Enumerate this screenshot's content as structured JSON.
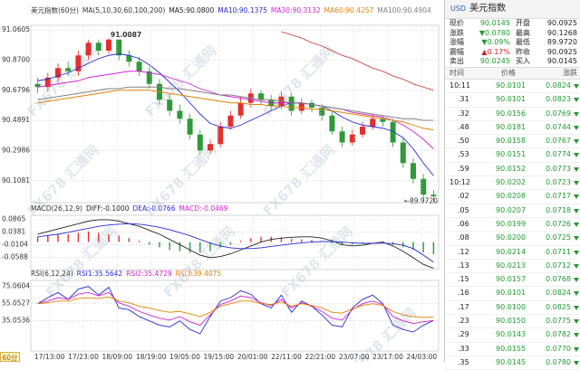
{
  "chart_data": [
    {
      "type": "candlestick",
      "title": "美元指数(60分)",
      "legend": [
        "MA(5,10,30,60,100,200)",
        "MA5:90.0800",
        "MA10:90.1375",
        "MA30:90.3132",
        "MA60:90.4257",
        "MA100:90.4904"
      ],
      "legend_colors": [
        "#333333",
        "#222222",
        "#2a2ad0",
        "#d020d0",
        "#e08000",
        "#808080"
      ],
      "open": [
        90.72,
        90.7,
        90.76,
        90.82,
        90.8,
        90.9,
        90.98,
        90.93,
        91.0,
        90.9,
        90.86,
        90.8,
        90.72,
        90.62,
        90.55,
        90.5,
        90.4,
        90.3,
        90.34,
        90.45,
        90.52,
        90.6,
        90.66,
        90.62,
        90.58,
        90.64,
        90.55,
        90.6,
        90.57,
        90.52,
        90.42,
        90.35,
        90.4,
        90.45,
        90.5,
        90.48,
        90.35,
        90.22,
        90.12,
        90.02
      ],
      "high": [
        90.76,
        90.79,
        90.85,
        90.86,
        90.93,
        91.0,
        91.0,
        91.0087,
        91.0,
        90.93,
        90.89,
        90.83,
        90.75,
        90.66,
        90.59,
        90.53,
        90.43,
        90.37,
        90.48,
        90.55,
        90.64,
        90.69,
        90.68,
        90.65,
        90.67,
        90.66,
        90.63,
        90.62,
        90.59,
        90.55,
        90.45,
        90.43,
        90.48,
        90.53,
        90.52,
        90.5,
        90.38,
        90.25,
        90.15,
        90.05
      ],
      "low": [
        90.66,
        90.67,
        90.73,
        90.77,
        90.77,
        90.87,
        90.9,
        90.91,
        90.87,
        90.83,
        90.77,
        90.69,
        90.59,
        90.52,
        90.47,
        90.37,
        90.27,
        90.28,
        90.32,
        90.43,
        90.5,
        90.57,
        90.59,
        90.55,
        90.56,
        90.52,
        90.53,
        90.54,
        90.49,
        90.4,
        90.32,
        90.33,
        90.38,
        90.43,
        90.45,
        90.32,
        90.19,
        90.09,
        89.99,
        89.972
      ],
      "close": [
        90.7,
        90.76,
        90.82,
        90.8,
        90.9,
        90.98,
        90.93,
        91.0,
        90.9,
        90.86,
        90.8,
        90.72,
        90.62,
        90.55,
        90.5,
        90.4,
        90.3,
        90.34,
        90.45,
        90.52,
        90.6,
        90.66,
        90.62,
        90.58,
        90.64,
        90.55,
        90.6,
        90.57,
        90.52,
        90.42,
        90.35,
        90.4,
        90.45,
        90.5,
        90.48,
        90.35,
        90.22,
        90.12,
        90.02,
        90.01
      ],
      "up_color": "#e03030",
      "down_color": "#2e9a3a",
      "series": [
        {
          "color": "#2a2ad0",
          "values": [
            90.74,
            90.75,
            90.77,
            90.79,
            90.82,
            90.85,
            90.88,
            90.9,
            90.91,
            90.9,
            90.88,
            90.84,
            90.79,
            90.73,
            90.67,
            90.6,
            90.53,
            90.47,
            90.45,
            90.44,
            90.46,
            90.49,
            90.52,
            90.55,
            90.58,
            90.6,
            90.6,
            90.59,
            90.58,
            90.55,
            90.51,
            90.48,
            90.46,
            90.45,
            90.44,
            90.42,
            90.38,
            90.31,
            90.22,
            90.14
          ]
        },
        {
          "color": "#d020d0",
          "values": [
            90.7,
            90.71,
            90.72,
            90.73,
            90.74,
            90.76,
            90.77,
            90.78,
            90.79,
            90.8,
            90.8,
            90.79,
            90.78,
            90.76,
            90.74,
            90.72,
            90.69,
            90.67,
            90.65,
            90.64,
            90.63,
            90.62,
            90.61,
            90.6,
            90.6,
            90.6,
            90.6,
            90.59,
            90.58,
            90.57,
            90.56,
            90.54,
            90.53,
            90.52,
            90.51,
            90.49,
            90.46,
            90.42,
            90.37,
            90.31
          ]
        },
        {
          "color": "#e08000",
          "values": [
            90.6,
            90.61,
            90.62,
            90.63,
            90.64,
            90.65,
            90.66,
            90.67,
            90.68,
            90.68,
            90.68,
            90.68,
            90.67,
            90.66,
            90.65,
            90.64,
            90.63,
            90.62,
            90.61,
            90.6,
            90.6,
            90.59,
            90.59,
            90.58,
            90.58,
            90.57,
            90.57,
            90.56,
            90.56,
            90.55,
            90.54,
            90.53,
            90.52,
            90.51,
            90.5,
            90.49,
            90.48,
            90.46,
            90.44,
            90.43
          ]
        },
        {
          "color": "#808080",
          "values": [
            90.62,
            90.63,
            90.64,
            90.65,
            90.66,
            90.67,
            90.68,
            90.69,
            90.69,
            90.7,
            90.7,
            90.7,
            90.7,
            90.69,
            90.69,
            90.68,
            90.67,
            90.66,
            90.65,
            90.65,
            90.64,
            90.63,
            90.62,
            90.62,
            90.61,
            90.6,
            90.6,
            90.59,
            90.58,
            90.57,
            90.56,
            90.55,
            90.54,
            90.53,
            90.52,
            90.51,
            90.5,
            90.5,
            90.49,
            90.49
          ]
        },
        {
          "color": "#c83030",
          "values": [
            null,
            null,
            null,
            null,
            null,
            null,
            null,
            null,
            null,
            null,
            null,
            null,
            null,
            null,
            null,
            null,
            null,
            null,
            null,
            null,
            null,
            null,
            null,
            null,
            91.05,
            91.03,
            91.01,
            90.98,
            90.96,
            90.93,
            90.9,
            90.88,
            90.85,
            90.82,
            90.8,
            90.77,
            90.75,
            90.72,
            90.7,
            90.68
          ]
        }
      ],
      "ylim": [
        89.97,
        91.09
      ],
      "yticks": [
        91.0605,
        {
          "value": 90.87,
          "label": "90.8700"
        },
        90.6796,
        90.4891,
        90.2986,
        90.1081
      ],
      "annotations": [
        "91.0087",
        "←89.9720"
      ],
      "x_labels": [
        "17/13:00",
        "17/23:00",
        "18/09:00",
        "18/19:00",
        "19/05:00",
        "19/15:00",
        "20/01:00",
        "22/11:00",
        "22/21:00",
        "23/07:00",
        "23/17:00",
        "24/03:00"
      ],
      "grid": true
    },
    {
      "type": "macd",
      "title": "MACD(26,12,9)",
      "legend": [
        "DIFF:-0.1000",
        "DEA:-0.0766",
        "MACD:-0.0469"
      ],
      "legend_colors": [
        "#222222",
        "#2a2ad0",
        "#d020d0"
      ],
      "values": [
        0.02,
        0.025,
        0.03,
        0.03,
        0.035,
        0.04,
        0.035,
        0.03,
        0.025,
        0.015,
        0.005,
        -0.01,
        -0.02,
        -0.03,
        -0.035,
        -0.04,
        -0.04,
        -0.035,
        -0.02,
        -0.01,
        0.005,
        0.015,
        0.02,
        0.02,
        0.018,
        0.012,
        0.01,
        0.008,
        0.002,
        -0.005,
        -0.012,
        -0.01,
        -0.005,
        0.001,
        0.002,
        -0.01,
        -0.02,
        -0.03,
        -0.04,
        -0.0469
      ],
      "up_color": "#e03030",
      "down_color": "#2e9a3a",
      "series": [
        {
          "color": "#222222",
          "values": [
            0.03,
            0.04,
            0.05,
            0.06,
            0.07,
            0.08,
            0.085,
            0.085,
            0.08,
            0.07,
            0.06,
            0.045,
            0.03,
            0.01,
            -0.01,
            -0.03,
            -0.05,
            -0.06,
            -0.055,
            -0.045,
            -0.03,
            -0.015,
            0.0,
            0.01,
            0.015,
            0.018,
            0.02,
            0.02,
            0.015,
            0.005,
            -0.01,
            -0.015,
            -0.012,
            -0.005,
            0.0,
            -0.015,
            -0.035,
            -0.06,
            -0.085,
            -0.1
          ]
        },
        {
          "color": "#2a2ad0",
          "values": [
            0.02,
            0.025,
            0.03,
            0.037,
            0.045,
            0.052,
            0.06,
            0.065,
            0.068,
            0.07,
            0.068,
            0.063,
            0.056,
            0.047,
            0.036,
            0.024,
            0.01,
            -0.004,
            -0.015,
            -0.022,
            -0.025,
            -0.025,
            -0.022,
            -0.017,
            -0.012,
            -0.007,
            -0.003,
            0.0,
            0.002,
            0.002,
            0.0,
            -0.003,
            -0.005,
            -0.005,
            -0.004,
            -0.006,
            -0.012,
            -0.025,
            -0.05,
            -0.0766
          ]
        }
      ],
      "ylim": [
        -0.105,
        0.102
      ],
      "yticks": [
        0.0865,
        0.0381,
        -0.0104,
        -0.0588
      ],
      "grid": true
    },
    {
      "type": "line",
      "title": "RSI(6,12,24)",
      "legend": [
        "RSI1:35.5642",
        "RSI2:35.4729",
        "RSI3:39.4075"
      ],
      "legend_colors": [
        "#2a2ad0",
        "#d020d0",
        "#e08000"
      ],
      "series": [
        {
          "color": "#2a2ad0",
          "values": [
            55,
            62,
            68,
            60,
            72,
            75,
            65,
            74,
            50,
            48,
            40,
            35,
            30,
            28,
            35,
            25,
            20,
            40,
            58,
            62,
            70,
            66,
            55,
            50,
            65,
            45,
            58,
            52,
            42,
            30,
            28,
            50,
            60,
            65,
            55,
            30,
            25,
            22,
            30,
            35.5642
          ]
        },
        {
          "color": "#d020d0",
          "values": [
            55,
            58,
            62,
            60,
            66,
            68,
            64,
            68,
            56,
            52,
            46,
            42,
            38,
            36,
            40,
            34,
            30,
            42,
            54,
            58,
            64,
            62,
            56,
            53,
            60,
            50,
            56,
            52,
            46,
            38,
            36,
            48,
            55,
            58,
            54,
            40,
            35,
            32,
            34,
            35.4729
          ]
        },
        {
          "color": "#e08000",
          "values": [
            55,
            56,
            58,
            58,
            61,
            62,
            61,
            63,
            58,
            56,
            52,
            50,
            47,
            45,
            46,
            43,
            40,
            45,
            52,
            55,
            58,
            58,
            55,
            54,
            57,
            52,
            55,
            53,
            50,
            45,
            44,
            49,
            53,
            55,
            53,
            46,
            42,
            40,
            39,
            39.4075
          ]
        }
      ],
      "ylim": [
        0,
        82
      ],
      "yticks": [
        75.0604,
        55.0527,
        35.0536
      ],
      "grid": true
    }
  ],
  "period_button": "60分",
  "watermark": "FX678 汇通网",
  "quote": {
    "symbol": "USD",
    "name": "美元指数",
    "stats": [
      [
        "现价",
        "90.0145",
        "开盘",
        "90.0925"
      ],
      [
        "涨跌",
        "▼0.0780",
        "最高",
        "90.1268"
      ],
      [
        "涨幅",
        "▼0.09%",
        "最低",
        "89.9720"
      ],
      [
        "震幅",
        "▲0.17%",
        "昨收",
        "90.0925"
      ],
      [
        "卖出",
        "90.0245",
        "买入",
        "90.0145"
      ]
    ],
    "columns": [
      "时间",
      "价格",
      "涨跌"
    ],
    "rows": [
      [
        "10:11",
        "90.0101",
        "0.0824"
      ],
      [
        ".31",
        "90.0101",
        "0.0823"
      ],
      [
        ".32",
        "90.0156",
        "0.0769"
      ],
      [
        ".48",
        "90.0181",
        "0.0744"
      ],
      [
        ".50",
        "90.0158",
        "0.0767"
      ],
      [
        ".53",
        "90.0151",
        "0.0774"
      ],
      [
        ".59",
        "90.0152",
        "0.0773"
      ],
      [
        "10:12",
        "90.0202",
        "0.0723"
      ],
      [
        ".02",
        "90.0208",
        "0.0717"
      ],
      [
        ".05",
        "90.0207",
        "0.0718"
      ],
      [
        ".06",
        "90.0199",
        "0.0726"
      ],
      [
        ".08",
        "90.0200",
        "0.0725"
      ],
      [
        ".12",
        "90.0214",
        "0.0711"
      ],
      [
        ".13",
        "90.0213",
        "0.0712"
      ],
      [
        ".15",
        "90.0157",
        "0.0768"
      ],
      [
        ".16",
        "90.0101",
        "0.0824"
      ],
      [
        ".17",
        "90.0100",
        "0.0825"
      ],
      [
        ".23",
        "90.0150",
        "0.0775"
      ],
      [
        ".29",
        "90.0143",
        "0.0782"
      ],
      [
        ".33",
        "90.0155",
        "0.0770"
      ],
      [
        ".35",
        "90.0145",
        "0.0780"
      ]
    ]
  }
}
